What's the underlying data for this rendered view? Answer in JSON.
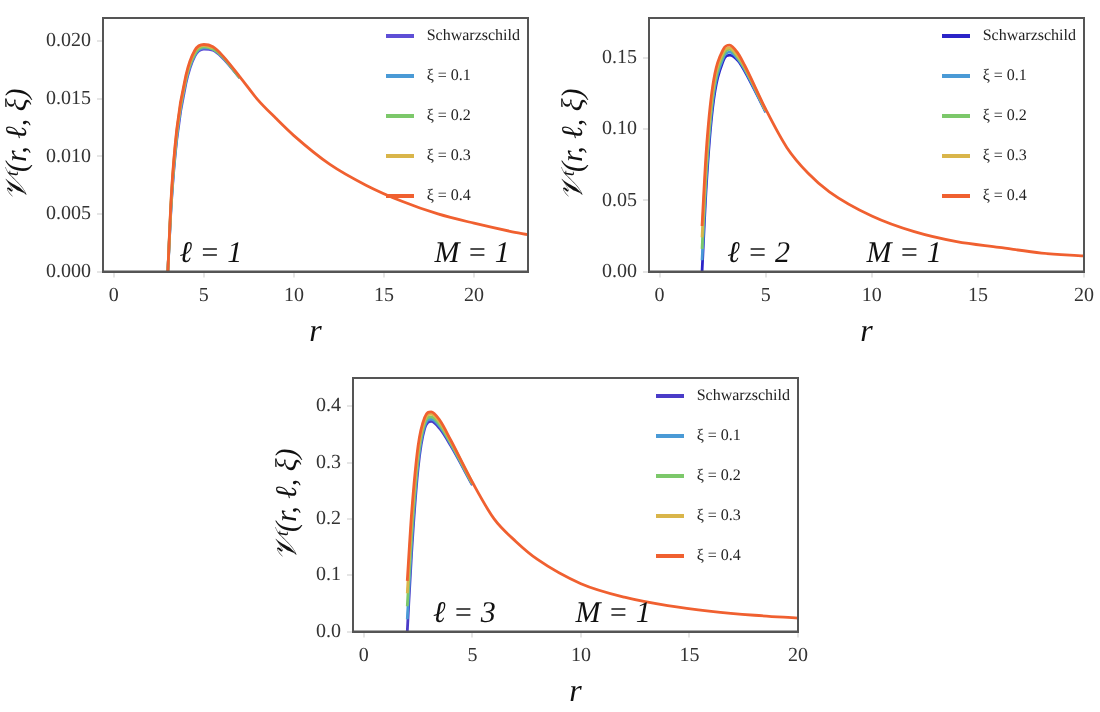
{
  "chart_data": [
    {
      "type": "line",
      "xlabel": "r",
      "ylabel": "𝒱ᵗ(r, ℓ, ξ)",
      "annotations": [
        "ℓ = 1",
        "M = 1"
      ],
      "legend": "top right",
      "xlim": [
        -0.6,
        23
      ],
      "xticks": [
        0,
        5,
        10,
        15,
        20
      ],
      "ylim": [
        0,
        0.022
      ],
      "yticks": [
        {
          "value": 0,
          "label": "0.000"
        },
        0.005,
        {
          "value": 0.01,
          "label": "0.010"
        },
        0.015,
        {
          "value": 0.02,
          "label": "0.020"
        }
      ],
      "series": [
        {
          "name": "Schwarzschild",
          "color": "#5e4fd6",
          "x": [
            3,
            3.2,
            3.5,
            4,
            4.5,
            5,
            5.5,
            6,
            7
          ],
          "values": [
            0,
            0.006,
            0.0115,
            0.0163,
            0.0187,
            0.0193,
            0.0192,
            0.0186,
            0.0168
          ]
        },
        {
          "name": "ξ = 0.1",
          "color": "#4a9ad6",
          "x": [
            3,
            3.2,
            3.5,
            4,
            4.5,
            5,
            5.5,
            6,
            7
          ],
          "values": [
            0,
            0.0062,
            0.0117,
            0.0165,
            0.0188,
            0.0194,
            0.0193,
            0.0187,
            0.0168
          ]
        },
        {
          "name": "ξ = 0.2",
          "color": "#7cc86a",
          "x": [
            3,
            3.2,
            3.5,
            4,
            4.5,
            5,
            5.5,
            6,
            7
          ],
          "values": [
            0,
            0.0064,
            0.012,
            0.0167,
            0.0189,
            0.0195,
            0.0193,
            0.0187,
            0.0168
          ]
        },
        {
          "name": "ξ = 0.3",
          "color": "#d9b54a",
          "x": [
            3,
            3.2,
            3.5,
            4,
            4.5,
            5,
            5.5
          ],
          "values": [
            0,
            0.0066,
            0.0122,
            0.0168,
            0.0191,
            0.0196,
            0.0194
          ]
        },
        {
          "name": "ξ = 0.4",
          "color": "#f06030",
          "x": [
            3,
            3.2,
            3.5,
            4,
            4.5,
            5,
            5.5,
            6,
            7,
            8,
            9,
            10,
            12,
            14,
            16,
            18,
            20,
            22,
            23
          ],
          "values": [
            0,
            0.0068,
            0.0124,
            0.017,
            0.0192,
            0.0197,
            0.0195,
            0.0188,
            0.0169,
            0.0149,
            0.0133,
            0.0118,
            0.0093,
            0.0075,
            0.0061,
            0.005,
            0.0042,
            0.0035,
            0.0032
          ]
        }
      ]
    },
    {
      "type": "line",
      "xlabel": "r",
      "ylabel": "𝒱ᵗ(r, ℓ, ξ)",
      "annotations": [
        "ℓ = 2",
        "M = 1"
      ],
      "legend": "top right",
      "xlim": [
        -0.5,
        20
      ],
      "xticks": [
        0,
        5,
        10,
        15,
        20
      ],
      "ylim": [
        0,
        0.178
      ],
      "yticks": [
        {
          "value": 0,
          "label": "0.00"
        },
        0.05,
        {
          "value": 0.1,
          "label": "0.10"
        },
        0.15
      ],
      "series": [
        {
          "name": "Schwarzschild",
          "color": "#2b24c8",
          "x": [
            2,
            2.2,
            2.5,
            3,
            3.3,
            3.7,
            4,
            5
          ],
          "values": [
            0,
            0.06,
            0.115,
            0.148,
            0.152,
            0.148,
            0.141,
            0.112
          ]
        },
        {
          "name": "ξ = 0.1",
          "color": "#4a9ad6",
          "x": [
            2,
            2.2,
            2.5,
            3,
            3.3,
            3.7,
            4,
            5
          ],
          "values": [
            0.008,
            0.066,
            0.119,
            0.15,
            0.154,
            0.149,
            0.142,
            0.112
          ]
        },
        {
          "name": "ξ = 0.2",
          "color": "#7cc86a",
          "x": [
            2,
            2.2,
            2.5,
            3,
            3.3,
            3.7,
            4,
            5
          ],
          "values": [
            0.016,
            0.072,
            0.123,
            0.152,
            0.156,
            0.15,
            0.143,
            0.113
          ]
        },
        {
          "name": "ξ = 0.3",
          "color": "#d9b54a",
          "x": [
            2,
            2.2,
            2.5,
            3,
            3.3,
            3.7,
            4,
            5
          ],
          "values": [
            0.024,
            0.078,
            0.126,
            0.154,
            0.157,
            0.151,
            0.144,
            0.113
          ]
        },
        {
          "name": "ξ = 0.4",
          "color": "#f06030",
          "x": [
            2,
            2.2,
            2.5,
            3,
            3.3,
            3.7,
            4,
            5,
            6,
            7,
            8,
            10,
            12,
            14,
            16,
            18,
            20
          ],
          "values": [
            0.032,
            0.085,
            0.13,
            0.156,
            0.159,
            0.153,
            0.145,
            0.114,
            0.087,
            0.069,
            0.056,
            0.039,
            0.028,
            0.021,
            0.017,
            0.013,
            0.011
          ]
        }
      ]
    },
    {
      "type": "line",
      "xlabel": "r",
      "ylabel": "𝒱ᵗ(r, ℓ, ξ)",
      "annotations": [
        "ℓ = 3",
        "M = 1"
      ],
      "legend": "top right",
      "xlim": [
        -0.5,
        20
      ],
      "xticks": [
        0,
        5,
        10,
        15,
        20
      ],
      "ylim": [
        0,
        0.45
      ],
      "yticks": [
        {
          "value": 0,
          "label": "0.0"
        },
        0.1,
        0.2,
        0.3,
        0.4
      ],
      "series": [
        {
          "name": "Schwarzschild",
          "color": "#4a3cc8",
          "x": [
            2,
            2.2,
            2.5,
            2.8,
            3.1,
            3.5,
            4,
            5
          ],
          "values": [
            0,
            0.14,
            0.29,
            0.36,
            0.373,
            0.36,
            0.33,
            0.26
          ]
        },
        {
          "name": "ξ = 0.1",
          "color": "#4a9ad6",
          "x": [
            2,
            2.2,
            2.5,
            2.8,
            3.1,
            3.5,
            4,
            5
          ],
          "values": [
            0.022,
            0.158,
            0.3,
            0.365,
            0.377,
            0.364,
            0.333,
            0.261
          ]
        },
        {
          "name": "ξ = 0.2",
          "color": "#7cc86a",
          "x": [
            2,
            2.2,
            2.5,
            2.8,
            3.1,
            3.5,
            4,
            5
          ],
          "values": [
            0.045,
            0.176,
            0.31,
            0.37,
            0.381,
            0.367,
            0.335,
            0.262
          ]
        },
        {
          "name": "ξ = 0.3",
          "color": "#d9b54a",
          "x": [
            2,
            2.2,
            2.5,
            2.8,
            3.1,
            3.5,
            4,
            5
          ],
          "values": [
            0.068,
            0.193,
            0.32,
            0.375,
            0.386,
            0.371,
            0.338,
            0.264
          ]
        },
        {
          "name": "ξ = 0.4",
          "color": "#f06030",
          "x": [
            2,
            2.2,
            2.5,
            2.8,
            3.1,
            3.5,
            4,
            5,
            6,
            7,
            8,
            10,
            12,
            14,
            16,
            18,
            20
          ],
          "values": [
            0.09,
            0.21,
            0.33,
            0.38,
            0.39,
            0.375,
            0.34,
            0.265,
            0.2,
            0.16,
            0.128,
            0.085,
            0.061,
            0.046,
            0.036,
            0.029,
            0.024
          ]
        }
      ]
    }
  ]
}
